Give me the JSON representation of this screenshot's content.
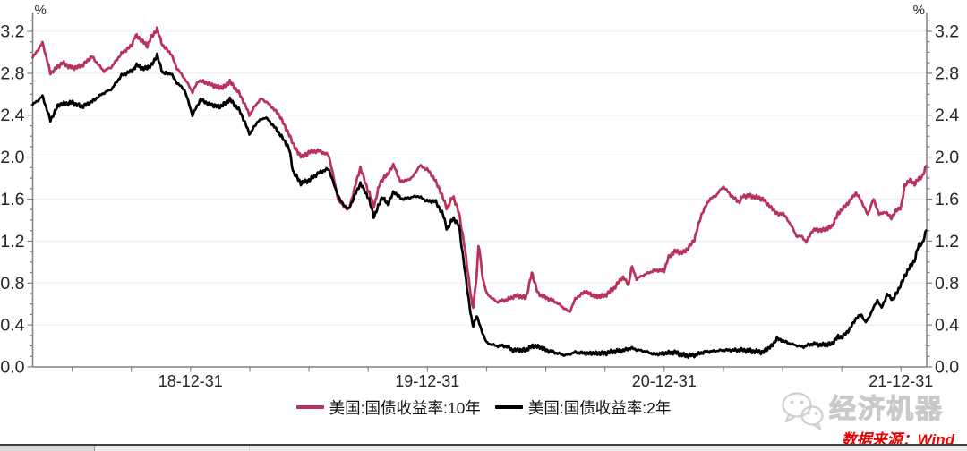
{
  "source": {
    "text": "数据来源：Wind",
    "color": "#e60000"
  },
  "watermark": {
    "text": "经济机器",
    "icon": "wechat-icon",
    "color": "#cfcfcf"
  },
  "colors": {
    "axis": "#808080",
    "grid": "#ededed",
    "tick_label": "#262626",
    "series_10y": "#b8325a",
    "series_2y": "#000000"
  },
  "chart_data": {
    "type": "line",
    "title": "",
    "unit_label_left": "%",
    "unit_label_right": "%",
    "grid": "horizontal-faint",
    "legend_position": "bottom-center",
    "y_axis": {
      "min": 0.0,
      "max": 3.38,
      "major_step": 0.4,
      "minor_step": 0.1,
      "tick_labels": [
        "0.0",
        "0.4",
        "0.8",
        "1.2",
        "1.6",
        "2.0",
        "2.4",
        "2.8",
        "3.2"
      ],
      "shown_on": "both-sides"
    },
    "x_axis": {
      "start_month": "2018-05",
      "end_month": "2022-02",
      "range_months": [
        0,
        45.3
      ],
      "minor_tick_ts": [
        2,
        5,
        8,
        11,
        14,
        17,
        20,
        23,
        26,
        29,
        32,
        35,
        38,
        41,
        44
      ],
      "labels": [
        {
          "t": 8,
          "text": "18-12-31"
        },
        {
          "t": 20,
          "text": "19-12-31"
        },
        {
          "t": 32,
          "text": "20-12-31"
        },
        {
          "t": 44,
          "text": "21-12-31"
        }
      ]
    },
    "texture_amplitude": 0.011,
    "series": [
      {
        "name": "美国:国债收益率:10年",
        "color": "#b8325a",
        "points": [
          [
            0,
            2.95
          ],
          [
            0.5,
            3.09
          ],
          [
            0.9,
            2.8
          ],
          [
            1.5,
            2.9
          ],
          [
            2,
            2.85
          ],
          [
            2.5,
            2.87
          ],
          [
            3,
            2.96
          ],
          [
            3.6,
            2.82
          ],
          [
            4,
            2.86
          ],
          [
            4.5,
            2.99
          ],
          [
            5,
            3.06
          ],
          [
            5.2,
            3.16
          ],
          [
            5.5,
            3.12
          ],
          [
            5.8,
            3.06
          ],
          [
            6,
            3.14
          ],
          [
            6.3,
            3.22
          ],
          [
            6.6,
            3.06
          ],
          [
            7,
            2.99
          ],
          [
            7.3,
            2.85
          ],
          [
            7.7,
            2.75
          ],
          [
            8.1,
            2.62
          ],
          [
            8.4,
            2.73
          ],
          [
            8.8,
            2.71
          ],
          [
            9.2,
            2.68
          ],
          [
            9.6,
            2.66
          ],
          [
            10,
            2.72
          ],
          [
            10.5,
            2.6
          ],
          [
            11,
            2.4
          ],
          [
            11.3,
            2.5
          ],
          [
            11.6,
            2.56
          ],
          [
            12,
            2.5
          ],
          [
            12.5,
            2.4
          ],
          [
            13,
            2.21
          ],
          [
            13.4,
            2.05
          ],
          [
            13.7,
            2.0
          ],
          [
            14,
            2.05
          ],
          [
            14.5,
            2.06
          ],
          [
            15,
            2.02
          ],
          [
            15.2,
            1.85
          ],
          [
            15.5,
            1.58
          ],
          [
            16,
            1.49
          ],
          [
            16.6,
            1.9
          ],
          [
            17,
            1.68
          ],
          [
            17.3,
            1.53
          ],
          [
            17.6,
            1.76
          ],
          [
            18,
            1.84
          ],
          [
            18.3,
            1.93
          ],
          [
            18.6,
            1.77
          ],
          [
            19,
            1.78
          ],
          [
            19.3,
            1.82
          ],
          [
            19.6,
            1.92
          ],
          [
            20,
            1.88
          ],
          [
            20.3,
            1.81
          ],
          [
            20.6,
            1.7
          ],
          [
            21,
            1.51
          ],
          [
            21.3,
            1.63
          ],
          [
            21.6,
            1.47
          ],
          [
            21.9,
            1.13
          ],
          [
            22.3,
            0.54
          ],
          [
            22.5,
            0.88
          ],
          [
            22.6,
            1.18
          ],
          [
            22.8,
            0.85
          ],
          [
            23,
            0.7
          ],
          [
            23.5,
            0.62
          ],
          [
            24,
            0.64
          ],
          [
            24.5,
            0.68
          ],
          [
            25,
            0.66
          ],
          [
            25.3,
            0.9
          ],
          [
            25.6,
            0.7
          ],
          [
            26,
            0.66
          ],
          [
            26.5,
            0.62
          ],
          [
            27,
            0.55
          ],
          [
            27.2,
            0.52
          ],
          [
            27.5,
            0.65
          ],
          [
            28,
            0.72
          ],
          [
            28.5,
            0.67
          ],
          [
            29,
            0.68
          ],
          [
            29.5,
            0.76
          ],
          [
            29.9,
            0.86
          ],
          [
            30.2,
            0.78
          ],
          [
            30.35,
            0.96
          ],
          [
            30.6,
            0.84
          ],
          [
            31,
            0.88
          ],
          [
            31.5,
            0.92
          ],
          [
            32,
            0.92
          ],
          [
            32.2,
            1.04
          ],
          [
            32.5,
            1.1
          ],
          [
            33,
            1.09
          ],
          [
            33.5,
            1.2
          ],
          [
            33.9,
            1.46
          ],
          [
            34.3,
            1.6
          ],
          [
            34.6,
            1.63
          ],
          [
            35,
            1.72
          ],
          [
            35.4,
            1.63
          ],
          [
            35.8,
            1.57
          ],
          [
            36,
            1.63
          ],
          [
            36.4,
            1.63
          ],
          [
            37,
            1.6
          ],
          [
            37.5,
            1.5
          ],
          [
            37.8,
            1.45
          ],
          [
            38,
            1.47
          ],
          [
            38.4,
            1.36
          ],
          [
            38.7,
            1.25
          ],
          [
            39,
            1.24
          ],
          [
            39.2,
            1.19
          ],
          [
            39.5,
            1.3
          ],
          [
            39.8,
            1.31
          ],
          [
            40,
            1.3
          ],
          [
            40.5,
            1.34
          ],
          [
            40.8,
            1.46
          ],
          [
            41,
            1.5
          ],
          [
            41.4,
            1.58
          ],
          [
            41.7,
            1.66
          ],
          [
            42,
            1.58
          ],
          [
            42.3,
            1.45
          ],
          [
            42.6,
            1.6
          ],
          [
            42.9,
            1.45
          ],
          [
            43.2,
            1.48
          ],
          [
            43.5,
            1.42
          ],
          [
            43.8,
            1.5
          ],
          [
            44,
            1.52
          ],
          [
            44.2,
            1.74
          ],
          [
            44.5,
            1.78
          ],
          [
            44.7,
            1.74
          ],
          [
            44.9,
            1.8
          ],
          [
            45.1,
            1.82
          ],
          [
            45.3,
            1.93
          ]
        ]
      },
      {
        "name": "美国:国债收益率:2年",
        "color": "#000000",
        "points": [
          [
            0,
            2.5
          ],
          [
            0.5,
            2.58
          ],
          [
            0.9,
            2.35
          ],
          [
            1.3,
            2.5
          ],
          [
            2,
            2.52
          ],
          [
            2.5,
            2.48
          ],
          [
            3,
            2.53
          ],
          [
            3.5,
            2.6
          ],
          [
            4,
            2.65
          ],
          [
            4.5,
            2.78
          ],
          [
            5,
            2.82
          ],
          [
            5.3,
            2.88
          ],
          [
            5.6,
            2.84
          ],
          [
            6,
            2.87
          ],
          [
            6.3,
            2.97
          ],
          [
            6.6,
            2.8
          ],
          [
            7,
            2.8
          ],
          [
            7.3,
            2.71
          ],
          [
            7.7,
            2.64
          ],
          [
            8.1,
            2.4
          ],
          [
            8.5,
            2.55
          ],
          [
            9,
            2.5
          ],
          [
            9.5,
            2.48
          ],
          [
            10,
            2.55
          ],
          [
            10.5,
            2.44
          ],
          [
            11,
            2.22
          ],
          [
            11.4,
            2.34
          ],
          [
            11.8,
            2.38
          ],
          [
            12.2,
            2.3
          ],
          [
            12.6,
            2.2
          ],
          [
            13,
            2.08
          ],
          [
            13.2,
            1.86
          ],
          [
            13.6,
            1.75
          ],
          [
            14,
            1.78
          ],
          [
            14.5,
            1.85
          ],
          [
            15,
            1.89
          ],
          [
            15.3,
            1.72
          ],
          [
            15.6,
            1.58
          ],
          [
            16,
            1.5
          ],
          [
            16.6,
            1.75
          ],
          [
            17,
            1.62
          ],
          [
            17.3,
            1.43
          ],
          [
            17.7,
            1.62
          ],
          [
            18,
            1.55
          ],
          [
            18.3,
            1.67
          ],
          [
            18.7,
            1.6
          ],
          [
            19,
            1.61
          ],
          [
            19.5,
            1.63
          ],
          [
            20,
            1.58
          ],
          [
            20.4,
            1.58
          ],
          [
            20.8,
            1.45
          ],
          [
            21,
            1.31
          ],
          [
            21.3,
            1.42
          ],
          [
            21.6,
            1.35
          ],
          [
            21.9,
            0.91
          ],
          [
            22.2,
            0.5
          ],
          [
            22.3,
            0.38
          ],
          [
            22.5,
            0.49
          ],
          [
            22.7,
            0.37
          ],
          [
            23,
            0.23
          ],
          [
            23.5,
            0.2
          ],
          [
            24,
            0.2
          ],
          [
            24.3,
            0.16
          ],
          [
            25,
            0.16
          ],
          [
            25.3,
            0.2
          ],
          [
            25.7,
            0.19
          ],
          [
            26,
            0.16
          ],
          [
            27,
            0.11
          ],
          [
            27.5,
            0.14
          ],
          [
            28,
            0.13
          ],
          [
            29,
            0.13
          ],
          [
            29.5,
            0.15
          ],
          [
            30,
            0.16
          ],
          [
            30.3,
            0.18
          ],
          [
            30.7,
            0.16
          ],
          [
            31,
            0.15
          ],
          [
            31.5,
            0.12
          ],
          [
            32,
            0.13
          ],
          [
            32.5,
            0.14
          ],
          [
            33,
            0.11
          ],
          [
            33.5,
            0.11
          ],
          [
            34,
            0.14
          ],
          [
            34.5,
            0.15
          ],
          [
            35,
            0.16
          ],
          [
            35.5,
            0.16
          ],
          [
            36,
            0.16
          ],
          [
            36.5,
            0.15
          ],
          [
            37,
            0.14
          ],
          [
            37.5,
            0.21
          ],
          [
            37.7,
            0.27
          ],
          [
            38,
            0.25
          ],
          [
            38.4,
            0.22
          ],
          [
            38.8,
            0.2
          ],
          [
            39,
            0.19
          ],
          [
            39.5,
            0.22
          ],
          [
            40,
            0.21
          ],
          [
            40.5,
            0.22
          ],
          [
            40.8,
            0.29
          ],
          [
            41,
            0.28
          ],
          [
            41.4,
            0.36
          ],
          [
            41.7,
            0.46
          ],
          [
            42,
            0.5
          ],
          [
            42.2,
            0.42
          ],
          [
            42.5,
            0.52
          ],
          [
            42.8,
            0.64
          ],
          [
            43,
            0.56
          ],
          [
            43.3,
            0.69
          ],
          [
            43.6,
            0.64
          ],
          [
            43.9,
            0.75
          ],
          [
            44.2,
            0.87
          ],
          [
            44.5,
            0.97
          ],
          [
            44.7,
            1.02
          ],
          [
            44.9,
            1.17
          ],
          [
            45.1,
            1.18
          ],
          [
            45.3,
            1.32
          ]
        ]
      }
    ]
  }
}
